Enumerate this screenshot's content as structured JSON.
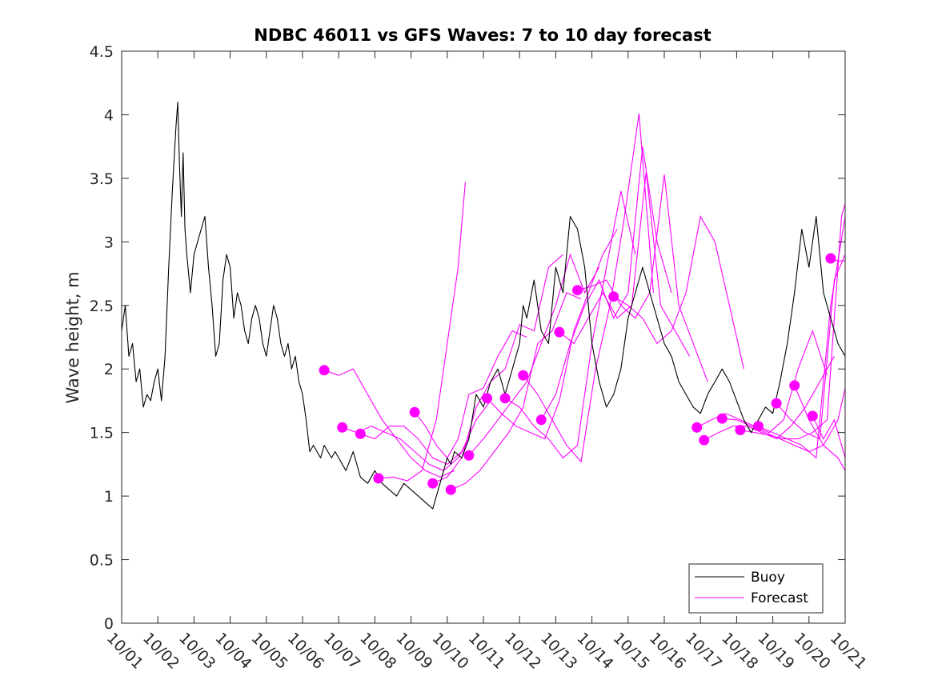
{
  "chart_data": {
    "type": "line",
    "title": "NDBC 46011 vs GFS Waves: 7 to 10 day forecast",
    "xlabel": "",
    "ylabel": "Wave height, m",
    "xlim": [
      0,
      20
    ],
    "ylim": [
      0,
      4.5
    ],
    "x_tick_labels": [
      "10/01",
      "10/02",
      "10/03",
      "10/04",
      "10/05",
      "10/06",
      "10/07",
      "10/08",
      "10/09",
      "10/10",
      "10/11",
      "10/12",
      "10/13",
      "10/14",
      "10/15",
      "10/16",
      "10/17",
      "10/18",
      "10/19",
      "10/20",
      "10/21"
    ],
    "y_ticks": [
      0,
      0.5,
      1,
      1.5,
      2,
      2.5,
      3,
      3.5,
      4,
      4.5
    ],
    "y_tick_labels": [
      "0",
      "0.5",
      "1",
      "1.5",
      "2",
      "2.5",
      "3",
      "3.5",
      "4",
      "4.5"
    ],
    "legend": {
      "position": "bottom-right",
      "entries": [
        "Buoy",
        "Forecast"
      ]
    },
    "colors": {
      "buoy": "#000000",
      "forecast": "#ff00ff"
    },
    "buoy_series": {
      "name": "Buoy",
      "x": [
        0,
        0.1,
        0.2,
        0.3,
        0.4,
        0.5,
        0.6,
        0.7,
        0.8,
        0.9,
        1.0,
        1.1,
        1.2,
        1.3,
        1.4,
        1.5,
        1.55,
        1.6,
        1.65,
        1.7,
        1.75,
        1.8,
        1.9,
        2.0,
        2.1,
        2.2,
        2.3,
        2.4,
        2.5,
        2.6,
        2.7,
        2.8,
        2.9,
        3.0,
        3.1,
        3.2,
        3.3,
        3.4,
        3.5,
        3.6,
        3.7,
        3.8,
        3.9,
        4.0,
        4.1,
        4.2,
        4.3,
        4.4,
        4.5,
        4.6,
        4.7,
        4.8,
        4.9,
        5.0,
        5.1,
        5.2,
        5.3,
        5.4,
        5.5,
        5.6,
        5.7,
        5.8,
        5.9,
        6.0,
        6.2,
        6.4,
        6.6,
        6.8,
        7.0,
        7.2,
        7.4,
        7.6,
        7.8,
        8.0,
        8.2,
        8.4,
        8.6,
        8.8,
        8.9,
        9.0,
        9.1,
        9.2,
        9.4,
        9.6,
        9.8,
        10.0,
        10.2,
        10.4,
        10.6,
        10.8,
        11.0,
        11.1,
        11.2,
        11.4,
        11.6,
        11.8,
        12.0,
        12.2,
        12.4,
        12.6,
        12.8,
        13.0,
        13.2,
        13.4,
        13.6,
        13.8,
        14.0,
        14.2,
        14.4,
        14.6,
        14.8,
        15.0,
        15.2,
        15.4,
        15.6,
        15.8,
        16.0,
        16.2,
        16.4,
        16.6,
        16.8,
        17.0,
        17.2,
        17.4,
        17.6,
        17.8,
        18.0,
        18.2,
        18.4,
        18.6,
        18.8,
        19.0,
        19.2,
        19.4,
        19.6,
        19.8,
        20.0
      ],
      "values": [
        2.3,
        2.5,
        2.1,
        2.2,
        1.9,
        2.0,
        1.7,
        1.8,
        1.75,
        1.9,
        2.0,
        1.75,
        2.1,
        2.8,
        3.4,
        3.9,
        4.1,
        3.6,
        3.2,
        3.7,
        3.1,
        2.9,
        2.6,
        2.9,
        3.0,
        3.1,
        3.2,
        2.8,
        2.5,
        2.1,
        2.2,
        2.7,
        2.9,
        2.8,
        2.4,
        2.6,
        2.5,
        2.3,
        2.2,
        2.4,
        2.5,
        2.4,
        2.2,
        2.1,
        2.3,
        2.5,
        2.4,
        2.2,
        2.1,
        2.2,
        2.0,
        2.1,
        1.9,
        1.8,
        1.6,
        1.35,
        1.4,
        1.35,
        1.3,
        1.4,
        1.35,
        1.3,
        1.35,
        1.3,
        1.2,
        1.35,
        1.15,
        1.1,
        1.2,
        1.1,
        1.05,
        1.0,
        1.1,
        1.05,
        1.0,
        0.95,
        0.9,
        1.1,
        1.2,
        1.3,
        1.25,
        1.35,
        1.3,
        1.45,
        1.8,
        1.7,
        1.9,
        2.0,
        1.8,
        2.0,
        2.2,
        2.5,
        2.4,
        2.7,
        2.3,
        2.2,
        2.8,
        2.6,
        3.2,
        3.1,
        2.8,
        2.2,
        1.9,
        1.7,
        1.8,
        2.0,
        2.4,
        2.6,
        2.8,
        2.6,
        2.4,
        2.2,
        2.1,
        1.9,
        1.8,
        1.7,
        1.65,
        1.8,
        1.9,
        2.0,
        1.9,
        1.75,
        1.6,
        1.5,
        1.6,
        1.7,
        1.65,
        1.9,
        2.2,
        2.6,
        3.1,
        2.8,
        3.2,
        2.6,
        2.4,
        2.2,
        2.1
      ]
    },
    "forecast_series": [
      {
        "name": "Forecast",
        "x": [
          5.6,
          6.0,
          6.4,
          6.8,
          7.2,
          7.6,
          8.0,
          8.4,
          8.8,
          9.2
        ],
        "values": [
          1.99,
          1.95,
          2.0,
          1.8,
          1.6,
          1.45,
          1.3,
          1.2,
          1.15,
          1.2
        ]
      },
      {
        "name": "Forecast",
        "x": [
          6.1,
          6.5,
          6.9,
          7.3,
          7.7,
          8.1,
          8.5,
          8.9,
          9.3,
          9.6
        ],
        "values": [
          1.54,
          1.5,
          1.55,
          1.5,
          1.45,
          1.35,
          1.25,
          1.2,
          1.3,
          1.45
        ]
      },
      {
        "name": "Forecast",
        "x": [
          6.6,
          7.0,
          7.4,
          7.8,
          8.2,
          8.6,
          9.0,
          9.4,
          9.8,
          10.2
        ],
        "values": [
          1.49,
          1.45,
          1.55,
          1.55,
          1.45,
          1.3,
          1.25,
          1.35,
          1.6,
          1.75
        ]
      },
      {
        "name": "Forecast",
        "x": [
          7.1,
          7.5,
          7.9,
          8.3,
          8.7,
          8.9,
          9.1,
          9.3,
          9.5
        ],
        "values": [
          1.14,
          1.15,
          1.12,
          1.2,
          1.6,
          2.0,
          2.4,
          2.8,
          3.47
        ]
      },
      {
        "name": "Forecast",
        "x": [
          8.1,
          8.4,
          8.7,
          9.0,
          9.3,
          9.6,
          10.0,
          10.4,
          10.8,
          11.2
        ],
        "values": [
          1.66,
          1.55,
          1.4,
          1.3,
          1.45,
          1.8,
          1.85,
          2.1,
          2.3,
          2.25
        ]
      },
      {
        "name": "Forecast",
        "x": [
          8.6,
          9.0,
          9.4,
          9.8,
          10.2,
          10.6,
          11.0,
          11.4,
          11.8,
          12.2
        ],
        "values": [
          1.1,
          1.15,
          1.3,
          1.7,
          1.9,
          2.0,
          2.35,
          2.3,
          2.8,
          2.9
        ]
      },
      {
        "name": "Forecast",
        "x": [
          9.1,
          9.5,
          9.9,
          10.3,
          10.7,
          11.1,
          11.5,
          11.9,
          12.3,
          12.7
        ],
        "values": [
          1.05,
          1.1,
          1.2,
          1.35,
          1.5,
          1.7,
          2.2,
          2.3,
          2.6,
          2.55
        ]
      },
      {
        "name": "Forecast",
        "x": [
          9.6,
          10.0,
          10.4,
          10.8,
          11.2,
          11.6,
          12.0,
          12.4,
          12.8,
          13.2
        ],
        "values": [
          1.32,
          1.45,
          1.6,
          1.75,
          1.9,
          2.2,
          2.5,
          2.9,
          2.6,
          2.8
        ]
      },
      {
        "name": "Forecast",
        "x": [
          10.1,
          10.5,
          10.9,
          11.3,
          11.7,
          12.1,
          12.5,
          12.9,
          13.3,
          13.7
        ],
        "values": [
          1.77,
          1.65,
          1.55,
          1.5,
          1.45,
          1.75,
          2.3,
          2.6,
          2.9,
          3.1
        ]
      },
      {
        "name": "Forecast",
        "x": [
          10.6,
          11.0,
          11.4,
          11.8,
          12.2,
          12.6,
          13.0,
          13.4,
          13.8,
          14.2
        ],
        "values": [
          1.77,
          1.7,
          1.55,
          1.45,
          1.3,
          1.4,
          2.2,
          2.8,
          3.4,
          2.9
        ]
      },
      {
        "name": "Forecast",
        "x": [
          11.1,
          11.5,
          11.9,
          12.3,
          12.7,
          13.1,
          13.5,
          13.9,
          14.3,
          14.7
        ],
        "values": [
          1.95,
          1.8,
          1.6,
          1.4,
          1.27,
          2.0,
          2.5,
          3.2,
          4.01,
          2.6
        ]
      },
      {
        "name": "Forecast",
        "x": [
          11.6,
          12.0,
          12.4,
          12.8,
          13.2,
          13.6,
          14.0,
          14.4,
          14.8,
          15.2
        ],
        "values": [
          1.6,
          1.8,
          2.2,
          2.5,
          2.7,
          2.4,
          2.6,
          3.75,
          3.0,
          2.6
        ]
      },
      {
        "name": "Forecast",
        "x": [
          12.1,
          12.5,
          12.9,
          13.3,
          13.7,
          14.1,
          14.5,
          14.9,
          15.3,
          15.7
        ],
        "values": [
          2.29,
          2.2,
          2.4,
          2.6,
          2.4,
          2.5,
          3.55,
          2.5,
          2.3,
          2.1
        ]
      },
      {
        "name": "Forecast",
        "x": [
          12.6,
          13.0,
          13.4,
          13.8,
          14.2,
          14.6,
          15.0,
          15.4,
          15.8,
          16.2
        ],
        "values": [
          2.62,
          2.65,
          2.7,
          2.5,
          2.4,
          2.6,
          3.53,
          2.5,
          2.2,
          1.9
        ]
      },
      {
        "name": "Forecast",
        "x": [
          13.6,
          14.0,
          14.4,
          14.8,
          15.2,
          15.6,
          16.0,
          16.4,
          16.8,
          17.2
        ],
        "values": [
          2.57,
          2.5,
          2.4,
          2.2,
          2.3,
          2.6,
          3.2,
          3.0,
          2.5,
          2.0
        ]
      },
      {
        "name": "Forecast",
        "x": [
          15.9,
          16.3,
          16.7,
          17.1,
          17.5,
          17.9,
          18.3,
          18.7,
          19.1,
          19.5
        ],
        "values": [
          1.54,
          1.6,
          1.65,
          1.6,
          1.55,
          1.5,
          1.6,
          2.0,
          2.3,
          1.95
        ]
      },
      {
        "name": "Forecast",
        "x": [
          16.1,
          16.5,
          16.9,
          17.3,
          17.7,
          18.1,
          18.5,
          18.9,
          19.3,
          19.7
        ],
        "values": [
          1.44,
          1.5,
          1.55,
          1.55,
          1.5,
          1.45,
          1.55,
          1.7,
          1.9,
          2.1
        ]
      },
      {
        "name": "Forecast",
        "x": [
          16.6,
          17.0,
          17.4,
          17.8,
          18.2,
          18.6,
          19.0,
          19.4,
          19.8,
          20.0
        ],
        "values": [
          1.61,
          1.6,
          1.55,
          1.5,
          1.45,
          1.4,
          1.35,
          1.4,
          1.6,
          1.85
        ]
      },
      {
        "name": "Forecast",
        "x": [
          17.1,
          17.5,
          17.9,
          18.3,
          18.7,
          19.1,
          19.5,
          19.9,
          20.0
        ],
        "values": [
          1.52,
          1.5,
          1.48,
          1.45,
          1.45,
          1.5,
          1.6,
          3.2,
          3.3
        ]
      },
      {
        "name": "Forecast",
        "x": [
          17.6,
          18.0,
          18.4,
          18.8,
          19.2,
          19.6,
          20.0
        ],
        "values": [
          1.55,
          1.5,
          1.45,
          1.4,
          1.3,
          2.5,
          3.2
        ]
      },
      {
        "name": "Forecast",
        "x": [
          18.1,
          18.5,
          18.9,
          19.3,
          19.7,
          20.0
        ],
        "values": [
          1.73,
          1.6,
          1.5,
          1.45,
          2.7,
          2.9
        ]
      },
      {
        "name": "Forecast",
        "x": [
          18.6,
          19.0,
          19.4,
          19.8,
          20.0
        ],
        "values": [
          1.87,
          1.6,
          1.4,
          1.3,
          1.2
        ]
      },
      {
        "name": "Forecast",
        "x": [
          19.1,
          19.4,
          19.7,
          20.0
        ],
        "values": [
          1.63,
          1.45,
          1.6,
          1.3
        ]
      },
      {
        "name": "Forecast",
        "x": [
          19.6,
          19.8,
          20.0
        ],
        "values": [
          2.87,
          2.85,
          2.85
        ]
      }
    ],
    "forecast_markers": {
      "x": [
        5.6,
        6.1,
        6.6,
        7.1,
        8.1,
        8.6,
        9.1,
        9.6,
        10.1,
        10.6,
        11.1,
        11.6,
        12.1,
        12.6,
        13.6,
        15.9,
        16.1,
        16.6,
        17.1,
        17.6,
        18.1,
        18.6,
        19.1,
        19.6
      ],
      "values": [
        1.99,
        1.54,
        1.49,
        1.14,
        1.66,
        1.1,
        1.05,
        1.32,
        1.77,
        1.77,
        1.95,
        1.6,
        2.29,
        2.62,
        2.57,
        1.54,
        1.44,
        1.61,
        1.52,
        1.55,
        1.73,
        1.87,
        1.63,
        2.87
      ]
    }
  }
}
